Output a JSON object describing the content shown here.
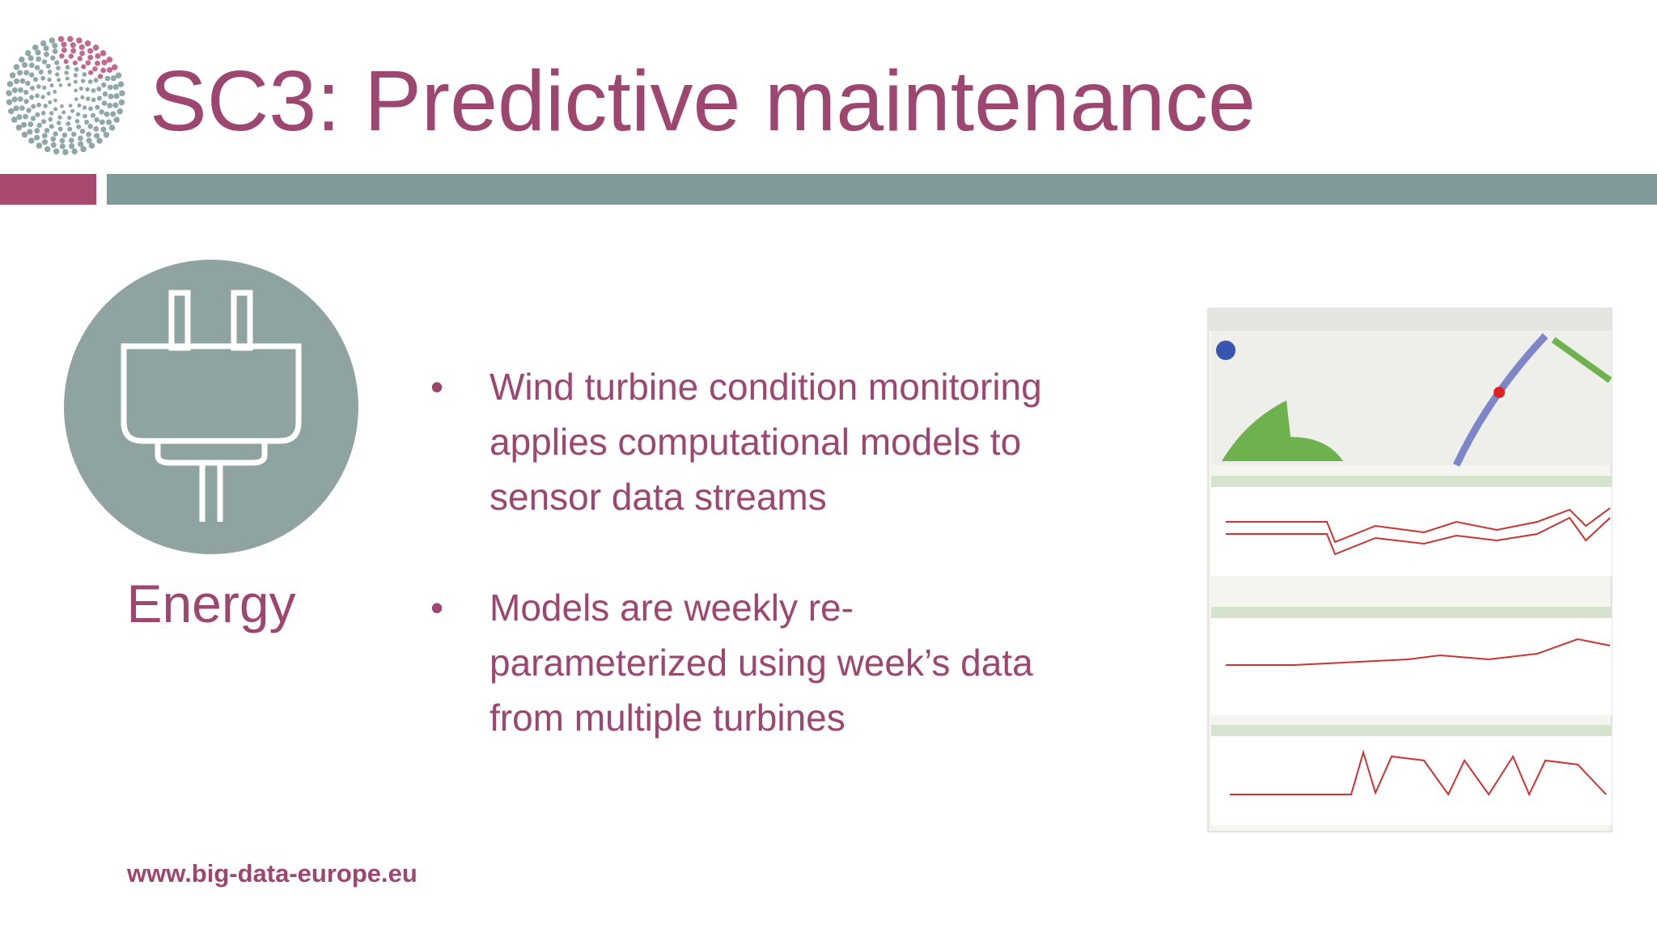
{
  "header": {
    "title": "SC3: Predictive maintenance"
  },
  "icon": {
    "label": "Energy"
  },
  "bullets": [
    {
      "lines": [
        "Wind turbine condition monitoring",
        "applies computational models to",
        "sensor data streams"
      ]
    },
    {
      "lines": [
        "Models are weekly re-",
        "parameterized using week’s data",
        "from multiple turbines"
      ]
    }
  ],
  "footer": {
    "url": "www.big-data-europe.eu"
  }
}
